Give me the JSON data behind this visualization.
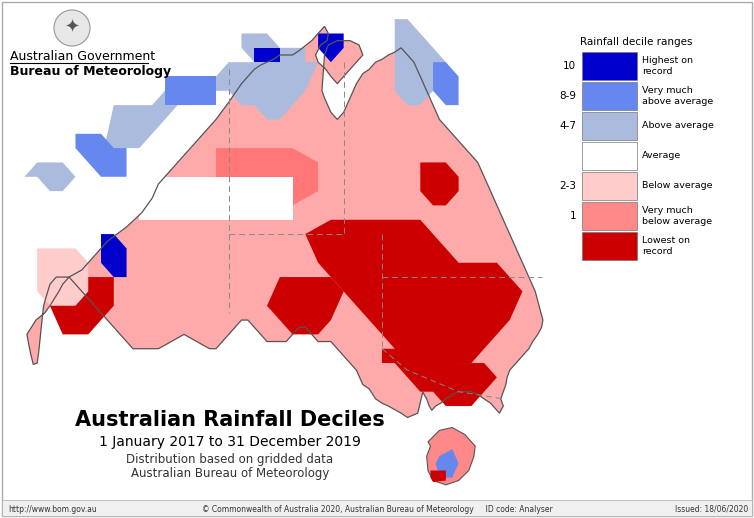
{
  "title": "Australian Rainfall Deciles",
  "subtitle1": "1 January 2017 to 31 December 2019",
  "subtitle2": "Distribution based on gridded data",
  "subtitle3": "Australian Bureau of Meteorology",
  "legend_title": "Rainfall decile ranges",
  "legend_labels": [
    "Highest on\nrecord",
    "Very much\nabove average",
    "Above average",
    "Average",
    "Below average",
    "Very much\nbelow average",
    "Lowest on\nrecord"
  ],
  "legend_colors": [
    "#0000cc",
    "#6688ee",
    "#aabbdd",
    "#ffffff",
    "#ffcccc",
    "#ff8888",
    "#cc0000"
  ],
  "legend_decile_nums": [
    "10",
    "8-9",
    "4-7",
    "2-3",
    "1"
  ],
  "legend_decile_indices": [
    0,
    1,
    3,
    4,
    5
  ],
  "footer_left": "http://www.bom.gov.au",
  "footer_center": "© Commonwealth of Australia 2020, Australian Bureau of Meteorology     ID code: Analyser",
  "footer_right": "Issued: 18/06/2020",
  "gov_text1": "Australian Government",
  "gov_text2": "Bureau of Meteorology",
  "bg_color": "#ffffff"
}
